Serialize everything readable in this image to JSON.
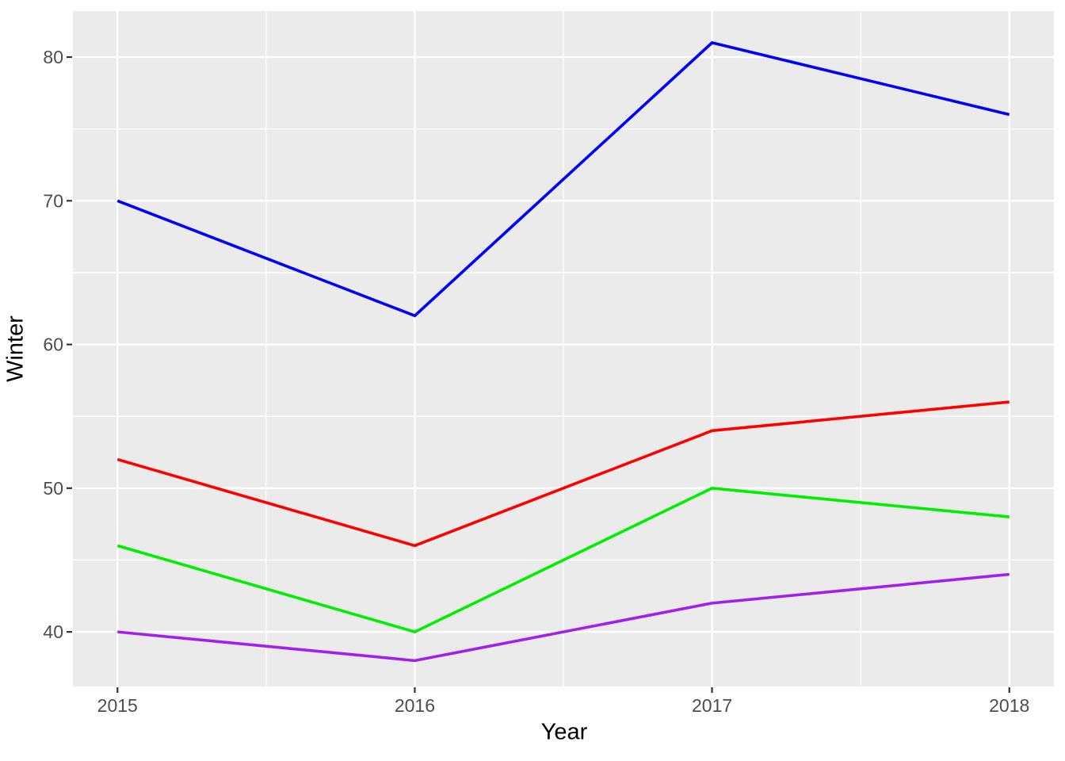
{
  "chart_data": {
    "type": "line",
    "title": "",
    "xlabel": "Year",
    "ylabel": "Winter",
    "x": [
      2015,
      2016,
      2017,
      2018
    ],
    "series": [
      {
        "name": "blue",
        "color": "#0000FF",
        "values": [
          70,
          62,
          81,
          76
        ]
      },
      {
        "name": "red",
        "color": "#FF0000",
        "values": [
          52,
          46,
          54,
          56
        ]
      },
      {
        "name": "green",
        "color": "#00EE00",
        "values": [
          46,
          40,
          50,
          48
        ]
      },
      {
        "name": "purple",
        "color": "#A020F0",
        "values": [
          40,
          38,
          42,
          44
        ]
      }
    ],
    "x_ticks": [
      2015,
      2016,
      2017,
      2018
    ],
    "y_ticks": [
      40,
      50,
      60,
      70,
      80
    ],
    "xlim": [
      2014.85,
      2018.15
    ],
    "ylim": [
      36.2,
      83.2
    ],
    "grid": {
      "on": true,
      "x_minor": [
        2015.5,
        2016.5,
        2017.5
      ],
      "y_minor": [
        45,
        55,
        65,
        75
      ]
    },
    "legend_position": "none",
    "style": {
      "panel_bg": "#EBEBEB",
      "grid_color": "#FFFFFF",
      "tick_mark_color": "#333333",
      "tick_label_color": "#4D4D4D",
      "axis_title_color": "#000000",
      "outer_bg": "#FFFFFF"
    }
  }
}
